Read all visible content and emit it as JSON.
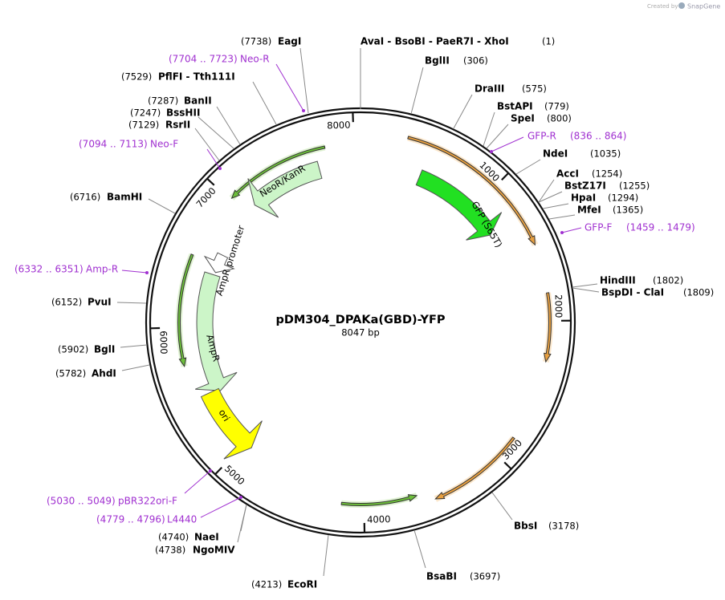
{
  "branding": {
    "prefix": "Created by",
    "brand": "SnapGene"
  },
  "plasmid": {
    "name": "pDM304_DPAKa(GBD)-YFP",
    "length": "8047 bp"
  },
  "ruler": [
    "1000",
    "2000",
    "3000",
    "4000",
    "5000",
    "6000",
    "7000",
    "8000"
  ],
  "sites": [
    {
      "name": "AvaI - BsoBI - PaeR7I - XhoI",
      "position": "(1)"
    },
    {
      "name": "BglII",
      "position": "(306)"
    },
    {
      "name": "DraIII",
      "position": "(575)"
    },
    {
      "name": "BstAPI",
      "position": "(779)"
    },
    {
      "name": "SpeI",
      "position": "(800)"
    },
    {
      "name": "NdeI",
      "position": "(1035)"
    },
    {
      "name": "AccI",
      "position": "(1254)"
    },
    {
      "name": "BstZ17I",
      "position": "(1255)"
    },
    {
      "name": "HpaI",
      "position": "(1294)"
    },
    {
      "name": "MfeI",
      "position": "(1365)"
    },
    {
      "name": "HindIII",
      "position": "(1802)"
    },
    {
      "name": "BspDI - ClaI",
      "position": "(1809)"
    },
    {
      "name": "BbsI",
      "position": "(3178)"
    },
    {
      "name": "BsaBI",
      "position": "(3697)"
    },
    {
      "name": "EcoRI",
      "position": "(4213)"
    },
    {
      "name": "NgoMIV",
      "position": "(4738)"
    },
    {
      "name": "NaeI",
      "position": "(4740)"
    },
    {
      "name": "AhdI",
      "position": "(5782)"
    },
    {
      "name": "BglI",
      "position": "(5902)"
    },
    {
      "name": "PvuI",
      "position": "(6152)"
    },
    {
      "name": "BamHI",
      "position": "(6716)"
    },
    {
      "name": "RsrII",
      "position": "(7129)"
    },
    {
      "name": "BssHII",
      "position": "(7247)"
    },
    {
      "name": "BanII",
      "position": "(7287)"
    },
    {
      "name": "PflFI - Tth111I",
      "position": "(7529)"
    },
    {
      "name": "EagI",
      "position": "(7738)"
    }
  ],
  "primers": [
    {
      "name": "GFP-R",
      "range": "(836 .. 864)"
    },
    {
      "name": "GFP-F",
      "range": "(1459 .. 1479)"
    },
    {
      "name": "Neo-R",
      "range": "(7704 .. 7723)"
    },
    {
      "name": "Neo-F",
      "range": "(7094 .. 7113)"
    },
    {
      "name": "Amp-R",
      "range": "(6332 .. 6351)"
    },
    {
      "name": "pBR322ori-F",
      "range": "(5030 .. 5049)"
    },
    {
      "name": "L4440",
      "range": "(4779 .. 4796)"
    }
  ],
  "features": [
    {
      "name": "NeoR/KanR"
    },
    {
      "name": "GFP (S65T)"
    },
    {
      "name": "AmpR promoter"
    },
    {
      "name": "AmpR"
    },
    {
      "name": "ori"
    }
  ]
}
